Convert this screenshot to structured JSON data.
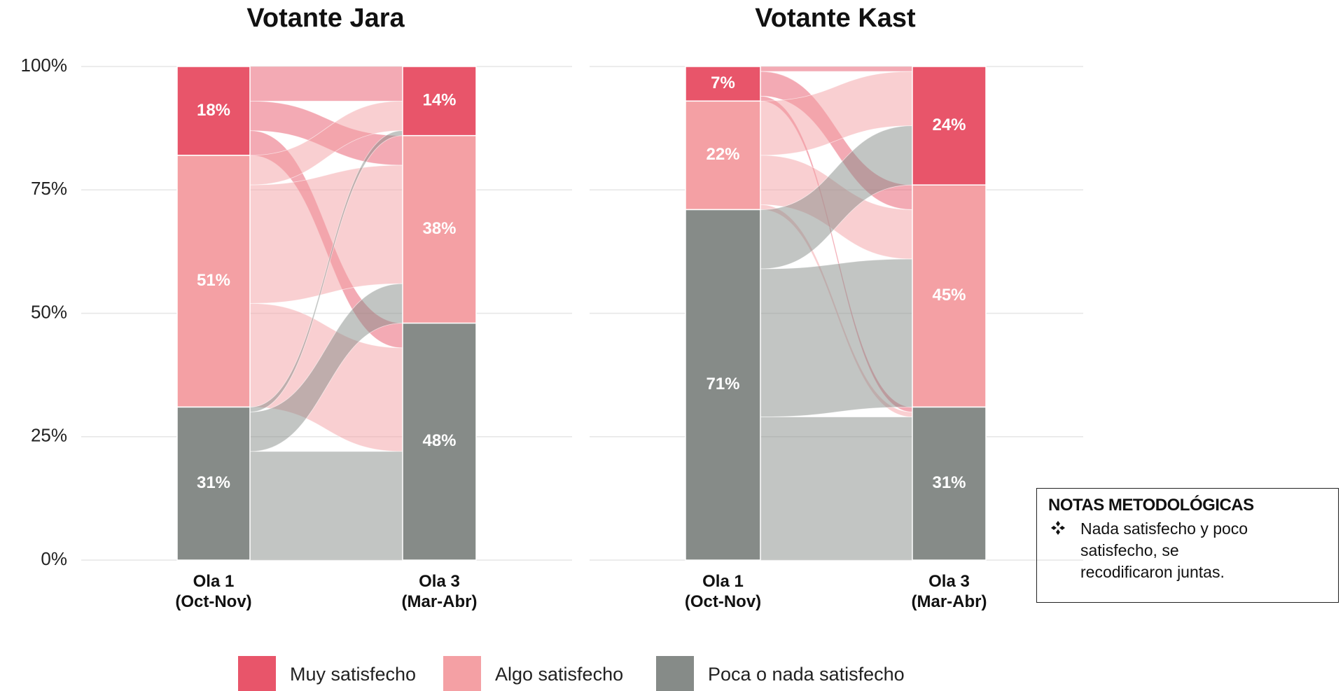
{
  "legend": {
    "items": [
      {
        "name": "Muy satisfecho",
        "color": "#e8556a"
      },
      {
        "name": "Algo satisfecho",
        "color": "#f4a0a4"
      },
      {
        "name": "Poca o nada satisfecho",
        "color": "#868b88"
      }
    ]
  },
  "chart_data": [
    {
      "type": "alluvial",
      "title": "Votante Jara",
      "categories": [
        "Ola 1\n(Oct-Nov)",
        "Ola 3\n(Mar-Abr)"
      ],
      "series": [
        {
          "values": [
            18,
            14
          ],
          "value_labels": [
            "18%",
            "14%"
          ]
        },
        {
          "values": [
            51,
            38
          ],
          "value_labels": [
            "51%",
            "38%"
          ]
        },
        {
          "values": [
            31,
            48
          ],
          "value_labels": [
            "31%",
            "48%"
          ]
        }
      ],
      "flows": [
        [
          7,
          6,
          5
        ],
        [
          6,
          24,
          21
        ],
        [
          1,
          8,
          22
        ]
      ],
      "ylim": [
        0,
        100
      ],
      "yticks": [
        {
          "value": 0,
          "label": "0%"
        },
        {
          "value": 25,
          "label": "25%"
        },
        {
          "value": 50,
          "label": "50%"
        },
        {
          "value": 75,
          "label": "75%"
        },
        {
          "value": 100,
          "label": "100%"
        }
      ],
      "grid": true
    },
    {
      "type": "alluvial",
      "title": "Votante Kast",
      "categories": [
        "Ola 1\n(Oct-Nov)",
        "Ola 3\n(Mar-Abr)"
      ],
      "series": [
        {
          "values": [
            7,
            24
          ],
          "value_labels": [
            "7%",
            "24%"
          ]
        },
        {
          "values": [
            22,
            45
          ],
          "value_labels": [
            "22%",
            "45%"
          ]
        },
        {
          "values": [
            71,
            31
          ],
          "value_labels": [
            "71%",
            "31%"
          ]
        }
      ],
      "flows": [
        [
          1,
          5,
          1
        ],
        [
          11,
          10,
          1
        ],
        [
          12,
          30,
          29
        ]
      ],
      "ylim": [
        0,
        100
      ],
      "yticks": [
        0,
        25,
        50,
        75,
        100
      ],
      "grid": true
    }
  ],
  "note": {
    "title": "NOTAS METODOLÓGICAS",
    "items": [
      "Nada satisfecho y poco satisfecho, se recodificaron juntas."
    ]
  }
}
